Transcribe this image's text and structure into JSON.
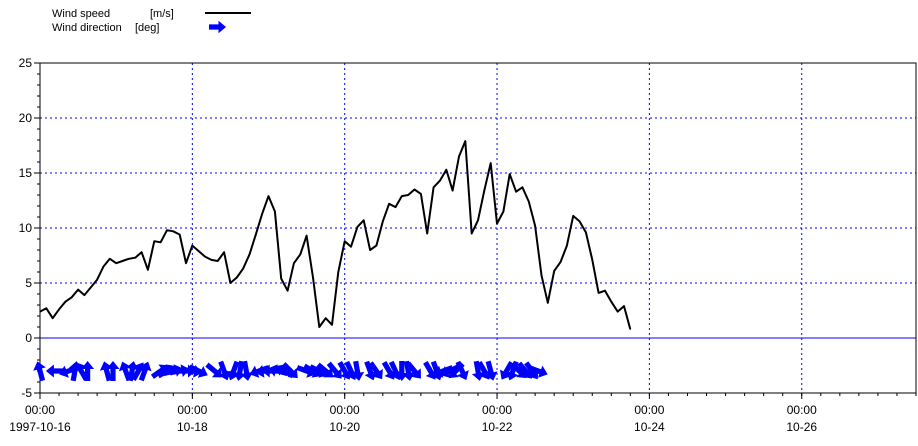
{
  "chart_data": {
    "type": "line",
    "legend": [
      {
        "label_text": "Wind speed",
        "label_unit": "[m/s]",
        "symbol": "line"
      },
      {
        "label_text": "Wind direction",
        "label_unit": "[deg]",
        "symbol": "arrow"
      }
    ],
    "legend_placement": "top-left",
    "grid": true,
    "colors": {
      "speed": "#000000",
      "direction": "#0000ff",
      "grid": "#0000ff"
    },
    "x_range": [
      "1997-10-16 00:00",
      "1997-10-27 12:00"
    ],
    "ylim": [
      -5,
      25
    ],
    "y_ticks": [
      "-5",
      "0",
      "5",
      "10",
      "15",
      "20",
      "25"
    ],
    "x_ticks": [
      {
        "time": "00:00",
        "date": "1997-10-16",
        "x": "1997-10-16 00:00"
      },
      {
        "time": "00:00",
        "date": "10-18",
        "x": "1997-10-18 00:00"
      },
      {
        "time": "00:00",
        "date": "10-20",
        "x": "1997-10-20 00:00"
      },
      {
        "time": "00:00",
        "date": "10-22",
        "x": "1997-10-22 00:00"
      },
      {
        "time": "00:00",
        "date": "10-24",
        "x": "1997-10-24 00:00"
      },
      {
        "time": "00:00",
        "date": "10-26",
        "x": "1997-10-26 00:00"
      }
    ],
    "series": [
      {
        "kind": "wind_speed",
        "points": [
          [
            "1997-10-16 00:00",
            2.4
          ],
          [
            "1997-10-16 02:00",
            2.7
          ],
          [
            "1997-10-16 04:00",
            1.8
          ],
          [
            "1997-10-16 06:00",
            2.6
          ],
          [
            "1997-10-16 08:00",
            3.3
          ],
          [
            "1997-10-16 10:00",
            3.7
          ],
          [
            "1997-10-16 12:00",
            4.4
          ],
          [
            "1997-10-16 14:00",
            3.9
          ],
          [
            "1997-10-16 16:00",
            4.6
          ],
          [
            "1997-10-16 18:00",
            5.3
          ],
          [
            "1997-10-16 20:00",
            6.5
          ],
          [
            "1997-10-16 22:00",
            7.2
          ],
          [
            "1997-10-17 00:00",
            6.8
          ],
          [
            "1997-10-17 02:00",
            7.0
          ],
          [
            "1997-10-17 04:00",
            7.2
          ],
          [
            "1997-10-17 06:00",
            7.3
          ],
          [
            "1997-10-17 08:00",
            7.8
          ],
          [
            "1997-10-17 10:00",
            6.2
          ],
          [
            "1997-10-17 12:00",
            8.8
          ],
          [
            "1997-10-17 14:00",
            8.7
          ],
          [
            "1997-10-17 16:00",
            9.8
          ],
          [
            "1997-10-17 18:00",
            9.7
          ],
          [
            "1997-10-17 20:00",
            9.4
          ],
          [
            "1997-10-17 22:00",
            6.8
          ],
          [
            "1997-10-18 00:00",
            8.4
          ],
          [
            "1997-10-18 02:00",
            7.9
          ],
          [
            "1997-10-18 04:00",
            7.4
          ],
          [
            "1997-10-18 06:00",
            7.1
          ],
          [
            "1997-10-18 08:00",
            7.0
          ],
          [
            "1997-10-18 10:00",
            7.8
          ],
          [
            "1997-10-18 12:00",
            5.0
          ],
          [
            "1997-10-18 14:00",
            5.5
          ],
          [
            "1997-10-18 16:00",
            6.3
          ],
          [
            "1997-10-18 18:00",
            7.6
          ],
          [
            "1997-10-18 20:00",
            9.4
          ],
          [
            "1997-10-18 22:00",
            11.3
          ],
          [
            "1997-10-19 00:00",
            12.9
          ],
          [
            "1997-10-19 02:00",
            11.5
          ],
          [
            "1997-10-19 04:00",
            5.4
          ],
          [
            "1997-10-19 06:00",
            4.3
          ],
          [
            "1997-10-19 08:00",
            6.8
          ],
          [
            "1997-10-19 10:00",
            7.6
          ],
          [
            "1997-10-19 12:00",
            9.3
          ],
          [
            "1997-10-19 14:00",
            5.5
          ],
          [
            "1997-10-19 16:00",
            1.0
          ],
          [
            "1997-10-19 18:00",
            1.8
          ],
          [
            "1997-10-19 20:00",
            1.2
          ],
          [
            "1997-10-19 22:00",
            6.0
          ],
          [
            "1997-10-20 00:00",
            8.8
          ],
          [
            "1997-10-20 02:00",
            8.3
          ],
          [
            "1997-10-20 04:00",
            10.1
          ],
          [
            "1997-10-20 06:00",
            10.7
          ],
          [
            "1997-10-20 08:00",
            8.0
          ],
          [
            "1997-10-20 10:00",
            8.4
          ],
          [
            "1997-10-20 12:00",
            10.6
          ],
          [
            "1997-10-20 14:00",
            12.2
          ],
          [
            "1997-10-20 16:00",
            11.9
          ],
          [
            "1997-10-20 18:00",
            12.9
          ],
          [
            "1997-10-20 20:00",
            13.0
          ],
          [
            "1997-10-20 22:00",
            13.5
          ],
          [
            "1997-10-21 00:00",
            13.1
          ],
          [
            "1997-10-21 02:00",
            9.5
          ],
          [
            "1997-10-21 04:00",
            13.7
          ],
          [
            "1997-10-21 06:00",
            14.3
          ],
          [
            "1997-10-21 08:00",
            15.3
          ],
          [
            "1997-10-21 10:00",
            13.4
          ],
          [
            "1997-10-21 12:00",
            16.5
          ],
          [
            "1997-10-21 14:00",
            17.9
          ],
          [
            "1997-10-21 16:00",
            9.5
          ],
          [
            "1997-10-21 18:00",
            10.7
          ],
          [
            "1997-10-21 20:00",
            13.4
          ],
          [
            "1997-10-21 22:00",
            15.9
          ],
          [
            "1997-10-22 00:00",
            10.4
          ],
          [
            "1997-10-22 02:00",
            11.5
          ],
          [
            "1997-10-22 04:00",
            14.9
          ],
          [
            "1997-10-22 06:00",
            13.3
          ],
          [
            "1997-10-22 08:00",
            13.7
          ],
          [
            "1997-10-22 10:00",
            12.4
          ],
          [
            "1997-10-22 12:00",
            10.2
          ],
          [
            "1997-10-22 14:00",
            5.7
          ],
          [
            "1997-10-22 16:00",
            3.2
          ],
          [
            "1997-10-22 18:00",
            6.1
          ],
          [
            "1997-10-22 20:00",
            6.9
          ],
          [
            "1997-10-22 22:00",
            8.4
          ],
          [
            "1997-10-23 00:00",
            11.1
          ],
          [
            "1997-10-23 02:00",
            10.6
          ],
          [
            "1997-10-23 04:00",
            9.6
          ],
          [
            "1997-10-23 06:00",
            7.1
          ],
          [
            "1997-10-23 08:00",
            4.1
          ],
          [
            "1997-10-23 10:00",
            4.3
          ],
          [
            "1997-10-23 12:00",
            3.3
          ],
          [
            "1997-10-23 14:00",
            2.4
          ],
          [
            "1997-10-23 16:00",
            2.9
          ],
          [
            "1997-10-23 18:00",
            0.8
          ]
        ]
      },
      {
        "kind": "wind_direction",
        "level": -3,
        "points": [
          [
            "1997-10-16 00:00",
            345
          ],
          [
            "1997-10-16 05:00",
            270
          ],
          [
            "1997-10-16 09:00",
            250
          ],
          [
            "1997-10-16 11:00",
            10
          ],
          [
            "1997-10-16 13:00",
            330
          ],
          [
            "1997-10-16 15:00",
            0
          ],
          [
            "1997-10-16 21:00",
            345
          ],
          [
            "1997-10-16 23:00",
            0
          ],
          [
            "1997-10-17 03:00",
            340
          ],
          [
            "1997-10-17 05:00",
            10
          ],
          [
            "1997-10-17 07:00",
            30
          ],
          [
            "1997-10-17 09:00",
            20
          ],
          [
            "1997-10-17 14:00",
            55
          ],
          [
            "1997-10-17 16:00",
            60
          ],
          [
            "1997-10-17 18:00",
            75
          ],
          [
            "1997-10-17 20:00",
            80
          ],
          [
            "1997-10-17 22:00",
            90
          ],
          [
            "1997-10-18 00:00",
            100
          ],
          [
            "1997-10-18 02:00",
            115
          ],
          [
            "1997-10-18 07:00",
            130
          ],
          [
            "1997-10-18 10:00",
            160
          ],
          [
            "1997-10-18 13:00",
            200
          ],
          [
            "1997-10-18 15:00",
            190
          ],
          [
            "1997-10-18 17:00",
            170
          ],
          [
            "1997-10-18 21:00",
            250
          ],
          [
            "1997-10-18 23:00",
            260
          ],
          [
            "1997-10-19 01:00",
            270
          ],
          [
            "1997-10-19 03:00",
            285
          ],
          [
            "1997-10-19 05:00",
            300
          ],
          [
            "1997-10-19 07:00",
            135
          ],
          [
            "1997-10-19 12:00",
            110
          ],
          [
            "1997-10-19 14:00",
            120
          ],
          [
            "1997-10-19 16:00",
            115
          ],
          [
            "1997-10-19 18:00",
            130
          ],
          [
            "1997-10-19 21:00",
            140
          ],
          [
            "1997-10-20 00:00",
            150
          ],
          [
            "1997-10-20 02:00",
            155
          ],
          [
            "1997-10-20 04:00",
            170
          ],
          [
            "1997-10-20 08:00",
            160
          ],
          [
            "1997-10-20 10:00",
            145
          ],
          [
            "1997-10-20 14:00",
            150
          ],
          [
            "1997-10-20 16:00",
            155
          ],
          [
            "1997-10-20 18:00",
            180
          ],
          [
            "1997-10-20 20:00",
            170
          ],
          [
            "1997-10-20 22:00",
            140
          ],
          [
            "1997-10-21 03:00",
            150
          ],
          [
            "1997-10-21 05:00",
            160
          ],
          [
            "1997-10-21 07:00",
            250
          ],
          [
            "1997-10-21 09:00",
            245
          ],
          [
            "1997-10-21 11:00",
            225
          ],
          [
            "1997-10-21 13:00",
            155
          ],
          [
            "1997-10-21 18:00",
            170
          ],
          [
            "1997-10-21 20:00",
            150
          ],
          [
            "1997-10-21 22:00",
            165
          ],
          [
            "1997-10-22 03:00",
            210
          ],
          [
            "1997-10-22 05:00",
            200
          ],
          [
            "1997-10-22 07:00",
            135
          ],
          [
            "1997-10-22 09:00",
            140
          ],
          [
            "1997-10-22 11:00",
            145
          ],
          [
            "1997-10-22 13:00",
            110
          ]
        ]
      }
    ]
  }
}
